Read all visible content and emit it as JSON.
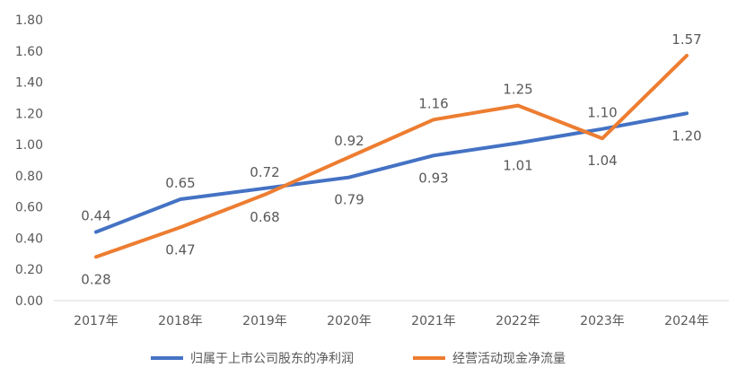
{
  "chart_data": {
    "type": "line",
    "categories": [
      "2017年",
      "2018年",
      "2019年",
      "2020年",
      "2021年",
      "2022年",
      "2023年",
      "2024年"
    ],
    "series": [
      {
        "name": "归属于上市公司股东的净利润",
        "values": [
          0.44,
          0.65,
          0.72,
          0.79,
          0.93,
          1.01,
          1.1,
          1.2
        ],
        "labels": [
          "0.44",
          "0.65",
          "0.72",
          "0.79",
          "0.93",
          "1.01",
          "1.10",
          "1.20"
        ],
        "color": "#4472C4"
      },
      {
        "name": "经营活动现金净流量",
        "values": [
          0.28,
          0.47,
          0.68,
          0.92,
          1.16,
          1.25,
          1.04,
          1.57
        ],
        "labels": [
          "0.28",
          "0.47",
          "0.68",
          "0.92",
          "1.16",
          "1.25",
          "1.04",
          "1.57"
        ],
        "color": "#ED7D31"
      }
    ],
    "ylim": [
      0,
      1.8
    ],
    "yticks": [
      "0.00",
      "0.20",
      "0.40",
      "0.60",
      "0.80",
      "1.00",
      "1.20",
      "1.40",
      "1.60",
      "1.80"
    ],
    "grid": false,
    "legend": "bottom"
  }
}
